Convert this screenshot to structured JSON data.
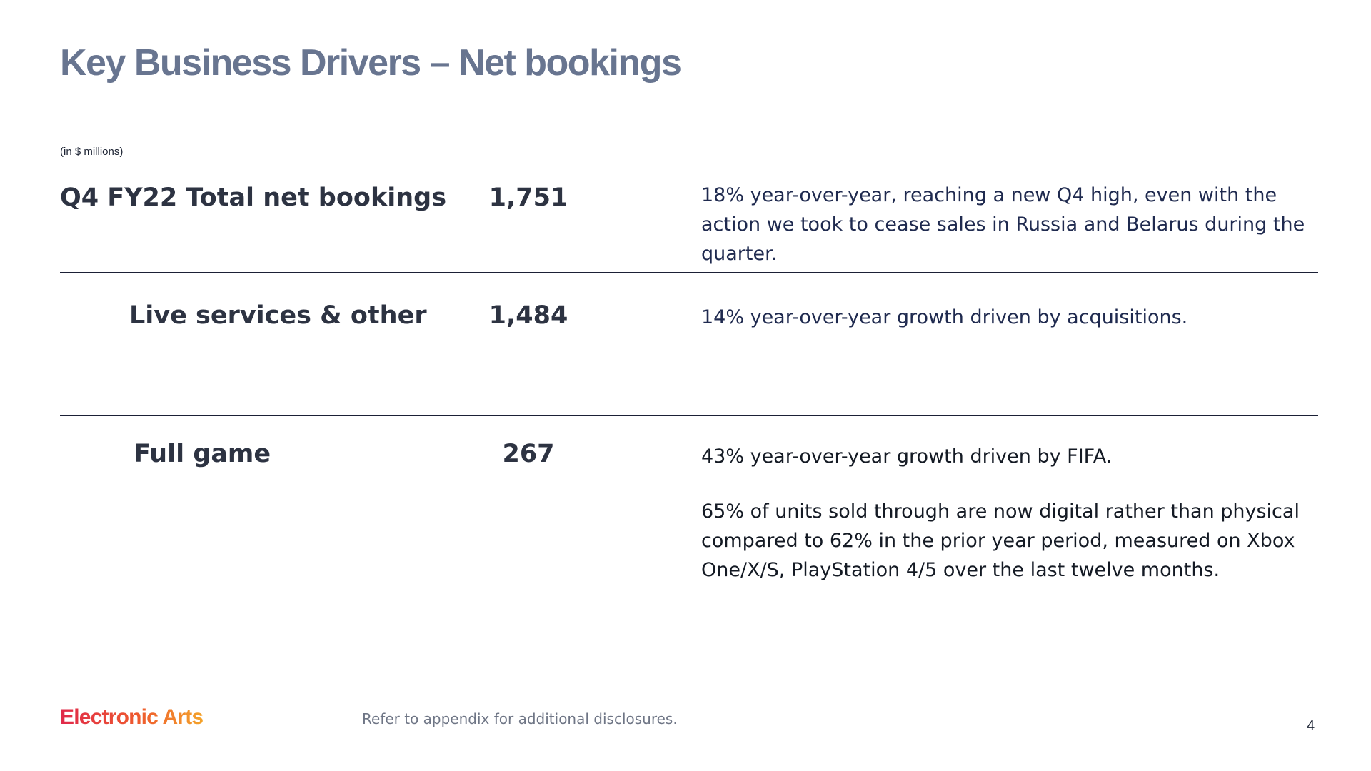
{
  "slide": {
    "title": "Key Business Drivers – Net bookings",
    "units": "(in $ millions)",
    "rows": [
      {
        "label": "Q4 FY22 Total net bookings",
        "value": "1,751",
        "description": [
          "18% year-over-year, reaching a new Q4 high, even with the action we took to cease sales in Russia and Belarus during the quarter."
        ]
      },
      {
        "label": "Live services & other",
        "value": "1,484",
        "description": [
          "14% year-over-year growth driven by acquisitions."
        ]
      },
      {
        "label": "Full game",
        "value": "267",
        "description": [
          "43% year-over-year growth driven by FIFA.",
          "65% of units sold through are now digital rather than physical compared to 62% in the prior year period, measured on Xbox One/X/S, PlayStation 4/5 over the last twelve months."
        ]
      }
    ]
  },
  "footer": {
    "logo_text": "Electronic Arts",
    "disclosure": "Refer to appendix for additional disclosures.",
    "page_number": "4"
  },
  "colors": {
    "title": "#687590",
    "divider": "#1b2036",
    "logo_start": "#e0284a",
    "logo_end": "#f4a32a"
  }
}
